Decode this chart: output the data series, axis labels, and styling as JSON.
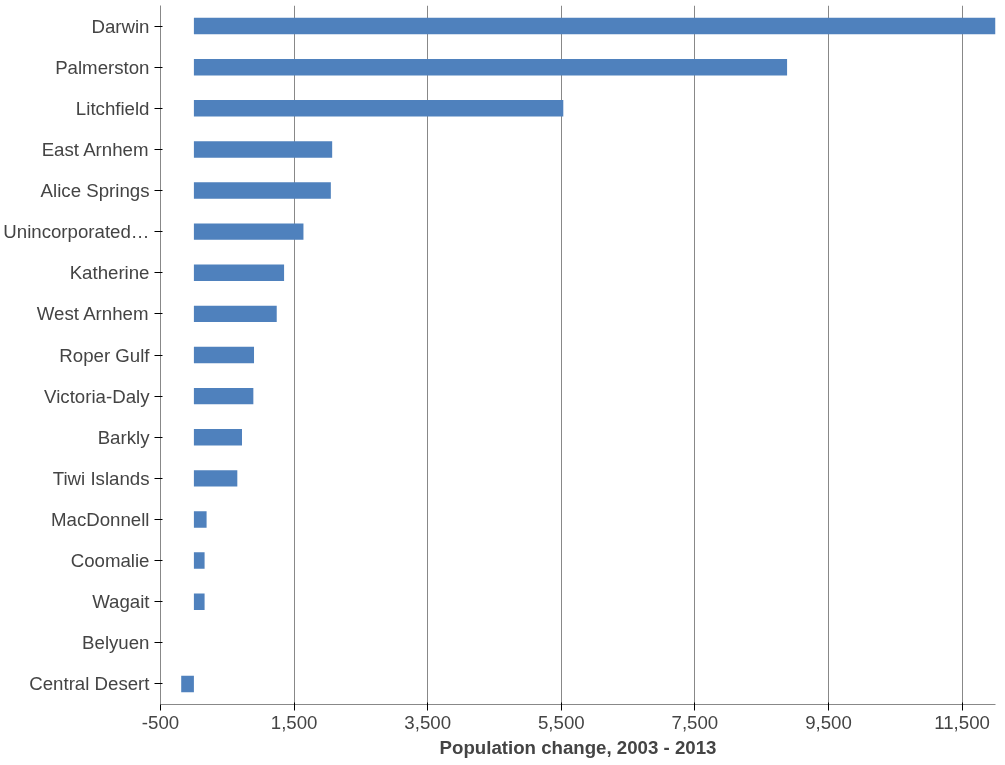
{
  "chart_data": {
    "type": "bar",
    "orientation": "horizontal",
    "xlabel": "Population change, 2003 - 2013",
    "categories": [
      "Darwin",
      "Palmerston",
      "Litchfield",
      "East Arnhem",
      "Alice Springs",
      "Unincorporated…",
      "Katherine",
      "West Arnhem",
      "Roper Gulf",
      "Victoria-Daly",
      "Barkly",
      "Tiwi Islands",
      "MacDonnell",
      "Coomalie",
      "Wagait",
      "Belyuen",
      "Central Desert"
    ],
    "values": [
      12000,
      8880,
      5530,
      2070,
      2050,
      1640,
      1350,
      1240,
      900,
      890,
      720,
      650,
      190,
      160,
      160,
      0,
      -190
    ],
    "color": "#4f81bd",
    "xlim": [
      -500,
      12000
    ],
    "xticks": [
      -500,
      {
        "value": 1500,
        "label": "1,500"
      },
      {
        "value": 3500,
        "label": "3,500"
      },
      {
        "value": 5500,
        "label": "5,500"
      },
      {
        "value": 7500,
        "label": "7,500"
      },
      {
        "value": 9500,
        "label": "9,500"
      },
      {
        "value": 11500,
        "label": "11,500"
      }
    ],
    "grid": "x"
  }
}
